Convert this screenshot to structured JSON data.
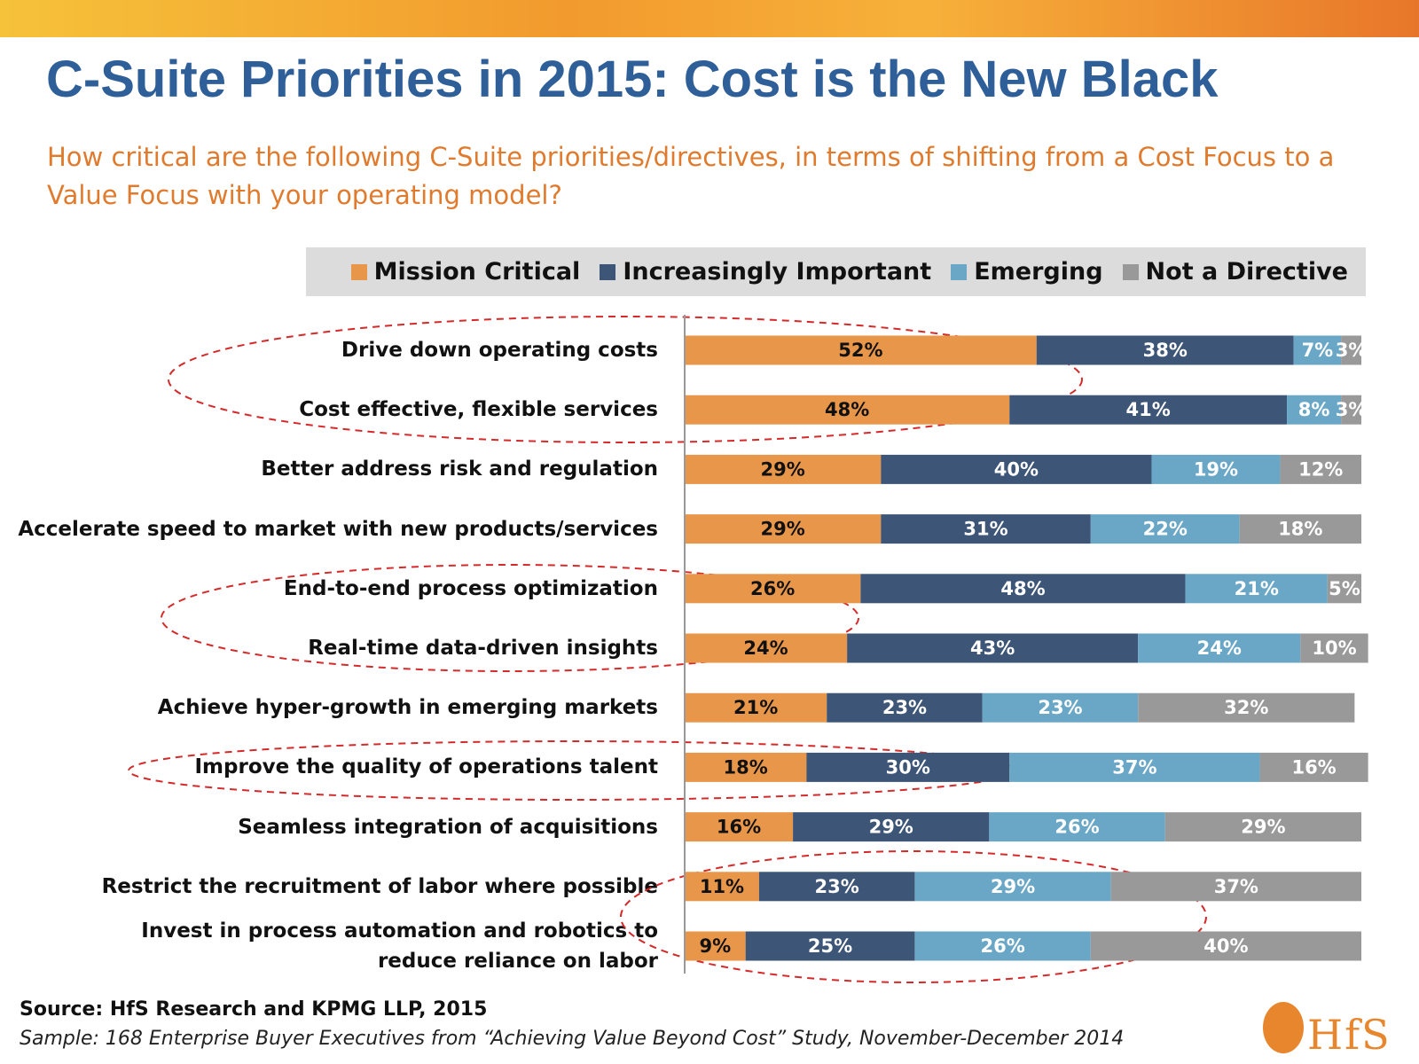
{
  "chart_data": {
    "type": "bar",
    "orientation": "horizontal",
    "stacked": true,
    "title": "C-Suite Priorities in 2015: Cost is the New Black",
    "subtitle": "How critical are the following C-Suite priorities/directives, in terms of shifting from a Cost Focus to a Value Focus with your operating model?",
    "categories": [
      "Drive down operating costs",
      "Cost effective, flexible services",
      "Better address risk and regulation",
      "Accelerate speed to market with new products/services",
      "End-to-end process optimization",
      "Real-time data-driven insights",
      "Achieve hyper-growth in emerging markets",
      "Improve the quality of operations talent",
      "Seamless integration of acquisitions",
      "Restrict the recruitment of labor where possible",
      "Invest in process automation and robotics to reduce reliance on labor"
    ],
    "series": [
      {
        "name": "Mission Critical",
        "color": "#e8964a",
        "label_color": "#111111",
        "values": [
          52,
          48,
          29,
          29,
          26,
          24,
          21,
          18,
          16,
          11,
          9
        ],
        "value_labels": [
          "52%",
          "48%",
          "29%",
          "29%",
          "26%",
          "24%",
          "21%",
          "18%",
          "16%",
          "11%",
          "9%"
        ]
      },
      {
        "name": "Increasingly Important",
        "color": "#3d5577",
        "label_color": "#ffffff",
        "values": [
          38,
          41,
          40,
          31,
          48,
          43,
          23,
          30,
          29,
          23,
          25
        ],
        "value_labels": [
          "38%",
          "41%",
          "40%",
          "31%",
          "48%",
          "43%",
          "23%",
          "30%",
          "29%",
          "23%",
          "25%"
        ]
      },
      {
        "name": "Emerging",
        "color": "#6aa7c6",
        "label_color": "#ffffff",
        "values": [
          7,
          8,
          19,
          22,
          21,
          24,
          23,
          37,
          26,
          29,
          26
        ],
        "value_labels": [
          "7%",
          "8%",
          "19%",
          "22%",
          "21%",
          "24%",
          "23%",
          "37%",
          "26%",
          "29%",
          "26%"
        ]
      },
      {
        "name": "Not a Directive",
        "color": "#999999",
        "label_color": "#ffffff",
        "values": [
          3,
          3,
          12,
          18,
          5,
          10,
          32,
          16,
          29,
          37,
          40
        ],
        "value_labels": [
          "3%",
          "3%",
          "12%",
          "18%",
          "5%",
          "10%",
          "32%",
          "16%",
          "29%",
          "37%",
          "40%"
        ]
      }
    ],
    "source": "Source:  HfS Research and KPMG LLP, 2015",
    "sample": "Sample: 168 Enterprise Buyer Executives from “Achieving Value Beyond Cost” Study, November-December 2014",
    "logo": "HfS"
  }
}
